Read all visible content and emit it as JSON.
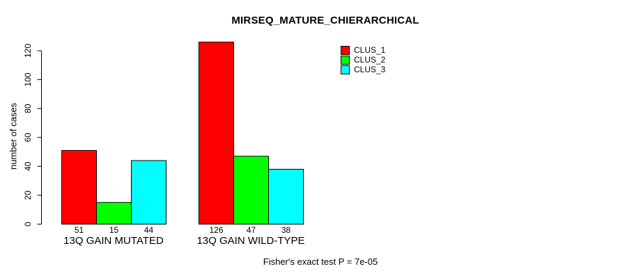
{
  "chart_data": {
    "type": "bar",
    "title": "MIRSEQ_MATURE_CHIERARCHICAL",
    "xlabel": "",
    "ylabel": "number of cases",
    "ylim": [
      0,
      120
    ],
    "yticks": [
      0,
      20,
      40,
      60,
      80,
      100,
      120
    ],
    "grid": false,
    "legend_position": "top-right",
    "categories": [
      "13Q GAIN MUTATED",
      "13Q GAIN WILD-TYPE"
    ],
    "series": [
      {
        "name": "CLUS_1",
        "color": "#ff0000",
        "values": [
          51,
          126
        ]
      },
      {
        "name": "CLUS_2",
        "color": "#00ff00",
        "values": [
          15,
          47
        ]
      },
      {
        "name": "CLUS_3",
        "color": "#00ffff",
        "values": [
          44,
          38
        ]
      }
    ],
    "bar_border_color": "#000000",
    "bar_value_labels": [
      [
        51,
        15,
        44
      ],
      [
        126,
        47,
        38
      ]
    ],
    "annotation": "Fisher's exact test P = 7e-05"
  }
}
